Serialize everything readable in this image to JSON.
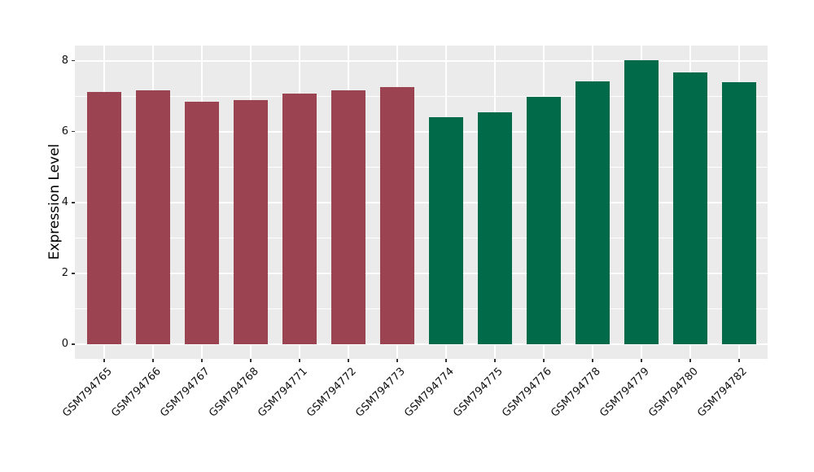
{
  "chart_data": {
    "type": "bar",
    "title": "",
    "xlabel": "",
    "ylabel": "Expression Level",
    "categories": [
      "GSM794765",
      "GSM794766",
      "GSM794767",
      "GSM794768",
      "GSM794771",
      "GSM794772",
      "GSM794773",
      "GSM794774",
      "GSM794775",
      "GSM794776",
      "GSM794778",
      "GSM794779",
      "GSM794780",
      "GSM794782"
    ],
    "values": [
      7.11,
      7.16,
      6.84,
      6.88,
      7.07,
      7.16,
      7.26,
      6.4,
      6.54,
      6.98,
      7.42,
      8.02,
      7.68,
      7.39
    ],
    "bar_colors": [
      "#9B4351",
      "#9B4351",
      "#9B4351",
      "#9B4351",
      "#9B4351",
      "#9B4351",
      "#9B4351",
      "#016A48",
      "#016A48",
      "#016A48",
      "#016A48",
      "#016A48",
      "#016A48",
      "#016A48"
    ],
    "group_palette": {
      "left_group_red": "#9B4351",
      "right_group_green": "#016A48"
    },
    "yticks": [
      0,
      2,
      4,
      6,
      8
    ],
    "ylim": [
      -0.42,
      8.45
    ],
    "grid": true,
    "legend": "none",
    "panel_bg": "#EBEBEB",
    "grid_color": "#FFFFFF"
  }
}
